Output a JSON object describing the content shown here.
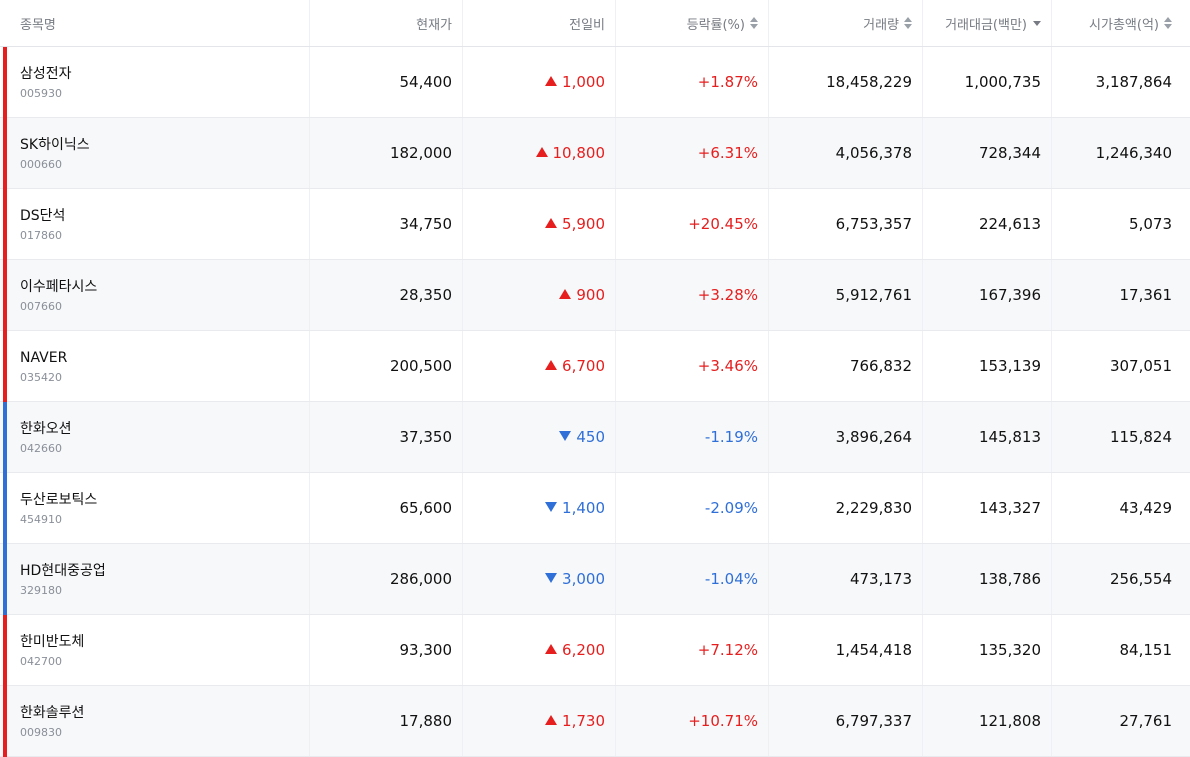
{
  "colors": {
    "rise": "#e61e1e",
    "fall": "#2f6fd8",
    "header_text": "#777b83",
    "code_text": "#8a8f98",
    "stripe_bg": "#f7f8fa"
  },
  "header": {
    "name": "종목명",
    "price": "현재가",
    "change": "전일비",
    "rate": "등락률(%)",
    "volume": "거래량",
    "amount": "거래대금(백만)",
    "market_cap": "시가총액(억)"
  },
  "sort": {
    "rate_icon": "sort-updown-icon",
    "volume_icon": "sort-updown-icon",
    "amount_icon": "sort-desc-icon",
    "market_cap_icon": "sort-updown-icon"
  },
  "rows": [
    {
      "name": "삼성전자",
      "code": "005930",
      "price": "54,400",
      "direction": "up",
      "change": "1,000",
      "rate": "+1.87%",
      "volume": "18,458,229",
      "amount": "1,000,735",
      "market_cap": "3,187,864"
    },
    {
      "name": "SK하이닉스",
      "code": "000660",
      "price": "182,000",
      "direction": "up",
      "change": "10,800",
      "rate": "+6.31%",
      "volume": "4,056,378",
      "amount": "728,344",
      "market_cap": "1,246,340"
    },
    {
      "name": "DS단석",
      "code": "017860",
      "price": "34,750",
      "direction": "up",
      "change": "5,900",
      "rate": "+20.45%",
      "volume": "6,753,357",
      "amount": "224,613",
      "market_cap": "5,073"
    },
    {
      "name": "이수페타시스",
      "code": "007660",
      "price": "28,350",
      "direction": "up",
      "change": "900",
      "rate": "+3.28%",
      "volume": "5,912,761",
      "amount": "167,396",
      "market_cap": "17,361"
    },
    {
      "name": "NAVER",
      "code": "035420",
      "price": "200,500",
      "direction": "up",
      "change": "6,700",
      "rate": "+3.46%",
      "volume": "766,832",
      "amount": "153,139",
      "market_cap": "307,051"
    },
    {
      "name": "한화오션",
      "code": "042660",
      "price": "37,350",
      "direction": "down",
      "change": "450",
      "rate": "-1.19%",
      "volume": "3,896,264",
      "amount": "145,813",
      "market_cap": "115,824"
    },
    {
      "name": "두산로보틱스",
      "code": "454910",
      "price": "65,600",
      "direction": "down",
      "change": "1,400",
      "rate": "-2.09%",
      "volume": "2,229,830",
      "amount": "143,327",
      "market_cap": "43,429"
    },
    {
      "name": "HD현대중공업",
      "code": "329180",
      "price": "286,000",
      "direction": "down",
      "change": "3,000",
      "rate": "-1.04%",
      "volume": "473,173",
      "amount": "138,786",
      "market_cap": "256,554"
    },
    {
      "name": "한미반도체",
      "code": "042700",
      "price": "93,300",
      "direction": "up",
      "change": "6,200",
      "rate": "+7.12%",
      "volume": "1,454,418",
      "amount": "135,320",
      "market_cap": "84,151"
    },
    {
      "name": "한화솔루션",
      "code": "009830",
      "price": "17,880",
      "direction": "up",
      "change": "1,730",
      "rate": "+10.71%",
      "volume": "6,797,337",
      "amount": "121,808",
      "market_cap": "27,761"
    }
  ]
}
